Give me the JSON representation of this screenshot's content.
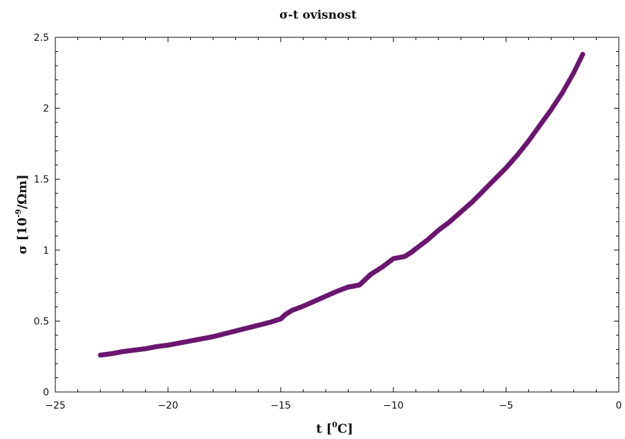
{
  "chart_data": {
    "type": "scatter",
    "title": "σ-t ovisnost",
    "xlabel_main": "t [",
    "xlabel_sup": "0",
    "xlabel_tail": "C]",
    "ylabel_main": "σ [10",
    "ylabel_sup": "-9",
    "ylabel_tail": "/Ωm]",
    "xlim": [
      -25,
      0
    ],
    "ylim": [
      0,
      2.5
    ],
    "x_ticks": [
      -25,
      -20,
      -15,
      -10,
      -5,
      0
    ],
    "x_tick_labels": [
      "−25",
      "−20",
      "−15",
      "−10",
      "−5",
      "0"
    ],
    "y_ticks": [
      0,
      0.5,
      1,
      1.5,
      2,
      2.5
    ],
    "y_tick_labels": [
      "0",
      "0.5",
      "1",
      "1.5",
      "2",
      "2.5"
    ],
    "grid": false,
    "marker_color": "#6a1670",
    "series": [
      {
        "x": [
          -23.0,
          -22.5,
          -22.0,
          -21.5,
          -21.0,
          -20.5,
          -20.0,
          -19.5,
          -19.0,
          -18.5,
          -18.0,
          -17.5,
          -17.0,
          -16.5,
          -16.0,
          -15.5,
          -15.0,
          -14.8,
          -14.5,
          -14.0,
          -13.5,
          -13.0,
          -12.5,
          -12.0,
          -11.8,
          -11.5,
          -11.2,
          -11.0,
          -10.5,
          -10.0,
          -9.5,
          -9.2,
          -9.0,
          -8.5,
          -8.0,
          -7.5,
          -7.0,
          -6.5,
          -6.0,
          -5.5,
          -5.0,
          -4.5,
          -4.0,
          -3.5,
          -3.0,
          -2.5,
          -2.0,
          -1.6
        ],
        "y": [
          0.26,
          0.27,
          0.285,
          0.295,
          0.305,
          0.32,
          0.33,
          0.345,
          0.36,
          0.375,
          0.39,
          0.41,
          0.43,
          0.45,
          0.47,
          0.49,
          0.515,
          0.545,
          0.575,
          0.605,
          0.64,
          0.675,
          0.71,
          0.74,
          0.745,
          0.755,
          0.8,
          0.83,
          0.88,
          0.94,
          0.955,
          0.985,
          1.01,
          1.07,
          1.14,
          1.2,
          1.27,
          1.34,
          1.42,
          1.5,
          1.58,
          1.67,
          1.77,
          1.88,
          1.99,
          2.11,
          2.25,
          2.38
        ]
      }
    ]
  }
}
